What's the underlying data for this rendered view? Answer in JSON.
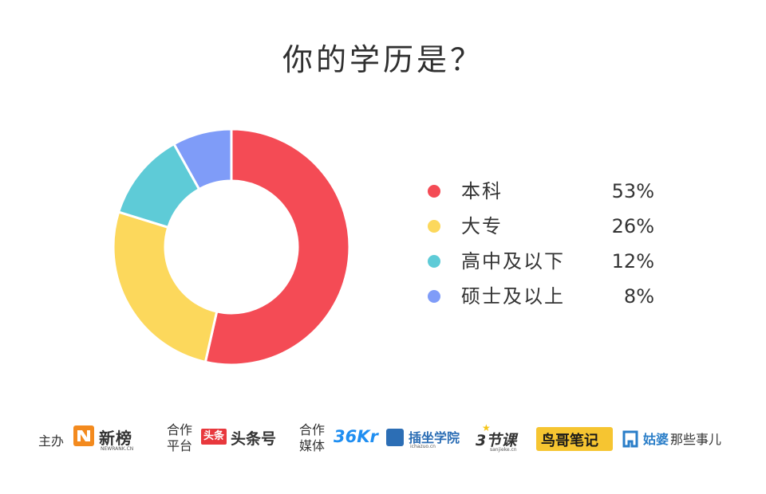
{
  "title": "你的学历是？",
  "chart_data": {
    "type": "pie",
    "title": "你的学历是？",
    "categories": [
      "本科",
      "大专",
      "高中及以下",
      "硕士及以上"
    ],
    "values": [
      53,
      26,
      12,
      8
    ],
    "labels": [
      "53%",
      "26%",
      "12%",
      "8%"
    ],
    "colors": [
      "#F44B55",
      "#FCD85C",
      "#5ECBD7",
      "#7F9CF8"
    ],
    "legend_placement": "right"
  },
  "footer": {
    "host_label": "主办",
    "host_brand": "新榜",
    "host_brand_sub": "NEWRANK.CN",
    "platform_label_1": "合作",
    "platform_label_2": "平台",
    "platform_badge": "头条",
    "platform_brand": "头条号",
    "media_label_1": "合作",
    "media_label_2": "媒体",
    "media_36kr": "36Kr",
    "media_chazuo": "插坐学院",
    "media_chazuo_sub": "ichazuo.cn",
    "media_3jieke": "3节课",
    "media_3jieke_sub": "sanjieke.cn",
    "media_niaoge": "鸟哥笔记",
    "media_gupo_bold": "姑婆",
    "media_gupo_rest": "那些事儿"
  }
}
